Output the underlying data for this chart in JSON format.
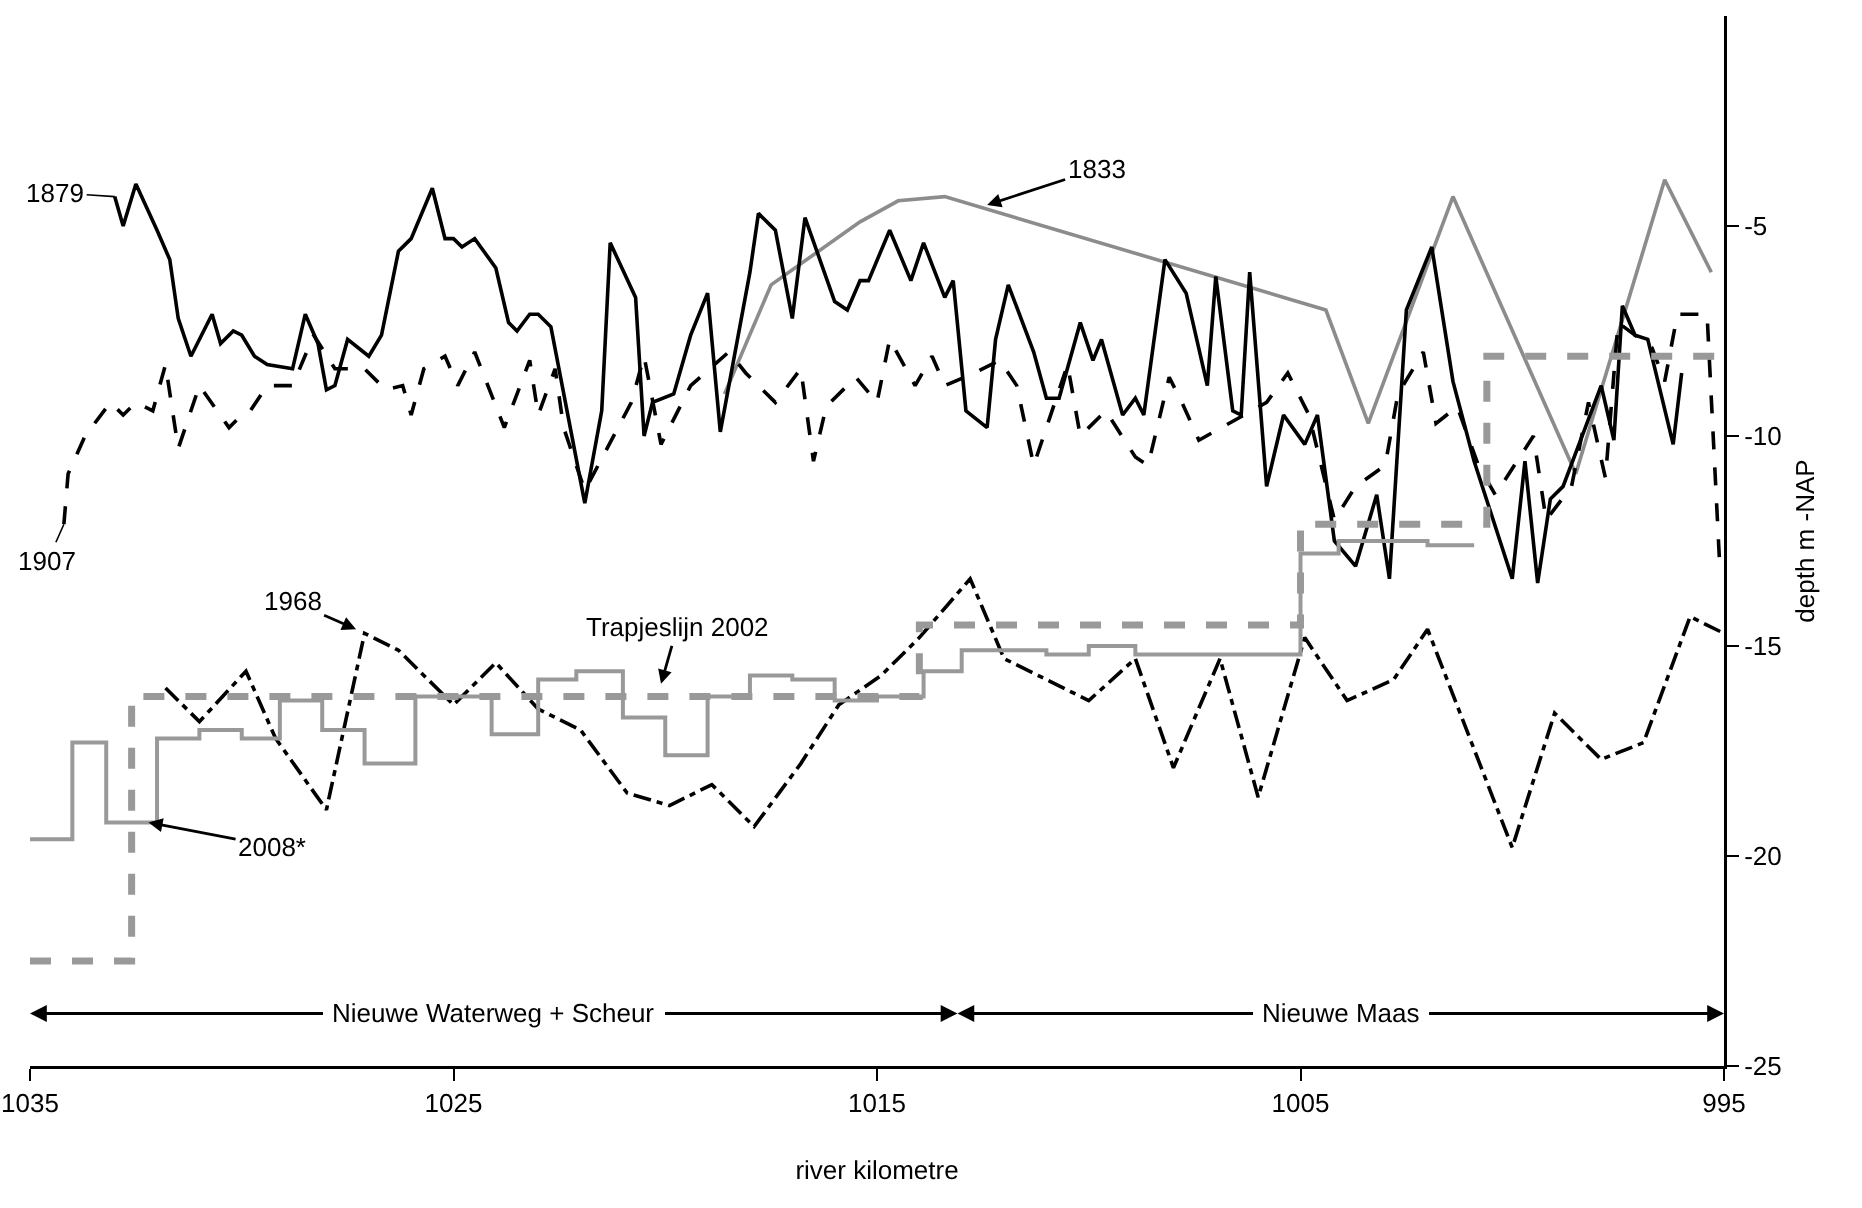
{
  "chart_data": {
    "type": "line",
    "xlabel": "river kilometre",
    "ylabel": "depth m -NAP",
    "xlim": [
      1035,
      995
    ],
    "xticks": [
      1035,
      1025,
      1015,
      1005,
      995
    ],
    "ylim": [
      -25,
      0
    ],
    "yticks": [
      -5,
      -10,
      -15,
      -20,
      -25
    ],
    "grid": false,
    "series": [
      {
        "color": "#8c8c8c",
        "line_style": "solid",
        "x": [
          1018.6,
          1017.5,
          1015.4,
          1014.5,
          1013.4,
          1004.4,
          1003.4,
          1001.4,
          998.5,
          996.4,
          995.3
        ],
        "values": [
          -9.0,
          -6.4,
          -4.9,
          -4.4,
          -4.3,
          -7.0,
          -9.7,
          -4.3,
          -10.9,
          -3.9,
          -6.1
        ]
      },
      {
        "color": "#000000",
        "line_style": "solid",
        "x": [
          1033.0,
          1032.8,
          1032.5,
          1032.0,
          1031.7,
          1031.5,
          1031.2,
          1030.7,
          1030.5,
          1030.2,
          1030.0,
          1029.7,
          1029.4,
          1028.8,
          1028.5,
          1028.2,
          1028.0,
          1027.8,
          1027.5,
          1027.0,
          1026.7,
          1026.3,
          1026.0,
          1025.5,
          1025.2,
          1025.0,
          1024.8,
          1024.5,
          1024.0,
          1023.7,
          1023.5,
          1023.2,
          1023.0,
          1022.7,
          1021.9,
          1021.5,
          1021.3,
          1020.7,
          1020.5,
          1020.3,
          1019.8,
          1019.4,
          1019.0,
          1018.7,
          1018.0,
          1017.8,
          1017.4,
          1017.0,
          1016.7,
          1016.0,
          1015.7,
          1015.4,
          1015.2,
          1014.7,
          1014.2,
          1013.9,
          1013.4,
          1013.2,
          1012.9,
          1012.4,
          1012.2,
          1011.9,
          1011.3,
          1011.0,
          1010.7,
          1010.2,
          1009.9,
          1009.7,
          1009.2,
          1008.9,
          1008.7,
          1008.2,
          1007.7,
          1007.2,
          1007.0,
          1006.6,
          1006.4,
          1006.2,
          1005.8,
          1005.4,
          1004.9,
          1004.6,
          1004.2,
          1003.7,
          1003.2,
          1002.9,
          1002.5,
          1001.9,
          1001.4,
          1000.9,
          1000.0,
          999.7,
          999.4,
          999.1,
          998.8,
          997.9,
          997.6,
          997.4,
          997.1,
          996.8,
          996.2,
          996.0
        ],
        "values": [
          -4.3,
          -5.0,
          -4.0,
          -5.1,
          -5.8,
          -7.2,
          -8.1,
          -7.1,
          -7.8,
          -7.5,
          -7.6,
          -8.1,
          -8.3,
          -8.4,
          -7.1,
          -7.8,
          -8.9,
          -8.8,
          -7.7,
          -8.1,
          -7.6,
          -5.6,
          -5.3,
          -4.1,
          -5.3,
          -5.3,
          -5.5,
          -5.3,
          -6.0,
          -7.3,
          -7.5,
          -7.1,
          -7.1,
          -7.4,
          -11.6,
          -9.4,
          -5.4,
          -6.7,
          -10.0,
          -9.2,
          -9.0,
          -7.6,
          -6.6,
          -9.9,
          -6.1,
          -4.7,
          -5.1,
          -7.2,
          -4.8,
          -6.8,
          -7.0,
          -6.3,
          -6.3,
          -5.1,
          -6.3,
          -5.4,
          -6.7,
          -6.3,
          -9.4,
          -9.8,
          -7.7,
          -6.4,
          -8.0,
          -9.1,
          -9.1,
          -7.3,
          -8.2,
          -7.7,
          -9.5,
          -9.1,
          -9.5,
          -5.8,
          -6.6,
          -8.8,
          -6.2,
          -9.4,
          -9.5,
          -6.1,
          -11.2,
          -9.5,
          -10.2,
          -9.5,
          -12.5,
          -13.1,
          -11.4,
          -13.4,
          -7.0,
          -5.5,
          -8.7,
          -10.6,
          -13.4,
          -10.6,
          -13.5,
          -11.5,
          -11.2,
          -8.8,
          -10.1,
          -6.9,
          -7.6,
          -7.7,
          -10.2,
          -8.5
        ]
      },
      {
        "color": "#000000",
        "line_style": "dashed",
        "x": [
          1034.2,
          1034.1,
          1033.7,
          1033.1,
          1032.8,
          1032.5,
          1032.1,
          1031.8,
          1031.5,
          1031.0,
          1030.3,
          1030.0,
          1029.8,
          1029.4,
          1028.8,
          1028.3,
          1027.8,
          1027.1,
          1026.6,
          1026.2,
          1026.0,
          1025.7,
          1025.2,
          1024.9,
          1024.5,
          1023.8,
          1023.2,
          1023.0,
          1022.6,
          1022.4,
          1021.9,
          1020.8,
          1020.5,
          1020.1,
          1019.4,
          1018.5,
          1018.1,
          1017.4,
          1016.8,
          1016.5,
          1016.2,
          1015.5,
          1015.0,
          1014.7,
          1014.1,
          1013.7,
          1013.4,
          1012.7,
          1012.1,
          1011.7,
          1011.3,
          1010.5,
          1010.2,
          1009.6,
          1008.9,
          1008.6,
          1008.1,
          1007.8,
          1007.4,
          1005.8,
          1005.3,
          1004.8,
          1004.2,
          1003.7,
          1003.0,
          1002.7,
          1002.1,
          1001.8,
          1001.3,
          1000.8,
          1000.4,
          999.5,
          999.2,
          998.6,
          998.2,
          997.8,
          997.5,
          996.7,
          996.4,
          996.1,
          995.4,
          995.1
        ],
        "values": [
          -12.1,
          -10.9,
          -10.0,
          -9.2,
          -9.5,
          -9.2,
          -9.4,
          -8.3,
          -10.3,
          -8.8,
          -9.8,
          -9.5,
          -9.4,
          -8.8,
          -8.8,
          -7.6,
          -8.4,
          -8.4,
          -8.9,
          -8.8,
          -9.5,
          -8.4,
          -8.1,
          -8.8,
          -8.0,
          -9.8,
          -8.2,
          -9.5,
          -8.4,
          -9.8,
          -11.3,
          -9.2,
          -8.1,
          -10.2,
          -8.8,
          -8.0,
          -8.5,
          -9.2,
          -8.4,
          -10.6,
          -9.3,
          -8.6,
          -9.2,
          -7.7,
          -8.8,
          -8.1,
          -8.8,
          -8.5,
          -8.2,
          -8.8,
          -10.7,
          -8.3,
          -10.0,
          -9.4,
          -10.5,
          -10.7,
          -8.6,
          -9.2,
          -10.1,
          -9.2,
          -8.5,
          -9.5,
          -12.0,
          -11.2,
          -10.7,
          -9.0,
          -8.0,
          -9.7,
          -9.3,
          -10.7,
          -11.4,
          -10.0,
          -12.0,
          -11.2,
          -9.2,
          -11.0,
          -7.3,
          -7.9,
          -8.7,
          -7.1,
          -7.1,
          -13.1
        ]
      },
      {
        "color": "#000000",
        "line_style": "dashdot",
        "x": [
          1031.8,
          1031.0,
          1029.9,
          1029.2,
          1028.0,
          1027.1,
          1026.3,
          1025.0,
          1024.0,
          1023.0,
          1022.0,
          1020.9,
          1019.9,
          1018.9,
          1017.9,
          1016.8,
          1015.9,
          1014.9,
          1014.0,
          1012.8,
          1012.0,
          1010.0,
          1008.9,
          1008.0,
          1006.9,
          1006.0,
          1004.9,
          1003.9,
          1002.8,
          1002.0,
          1000.0,
          999.0,
          997.9,
          996.9,
          995.8,
          995.0
        ],
        "values": [
          -16.0,
          -16.8,
          -15.6,
          -17.2,
          -18.9,
          -14.7,
          -15.1,
          -16.4,
          -15.4,
          -16.5,
          -17.0,
          -18.5,
          -18.8,
          -18.3,
          -19.3,
          -17.8,
          -16.4,
          -15.7,
          -14.8,
          -13.4,
          -15.3,
          -16.3,
          -15.3,
          -17.9,
          -15.3,
          -18.6,
          -14.8,
          -16.3,
          -15.8,
          -14.6,
          -19.8,
          -16.6,
          -17.7,
          -17.3,
          -14.3,
          -14.7
        ]
      },
      {
        "type": "step",
        "color": "#999999",
        "line_style": "dashed",
        "x": [
          1035,
          1032.6,
          1014.0,
          1005.0,
          1000.6,
          995.0
        ],
        "values": [
          -22.5,
          -16.2,
          -14.5,
          -12.1,
          -8.1,
          -8.1
        ]
      },
      {
        "type": "step",
        "color": "#999999",
        "line_style": "solid",
        "x": [
          1035,
          1034.0,
          1033.2,
          1032.0,
          1031.0,
          1030.0,
          1029.1,
          1028.1,
          1027.1,
          1025.9,
          1024.1,
          1023.0,
          1022.1,
          1021.0,
          1020.0,
          1019.0,
          1018.0,
          1017.0,
          1016.0,
          1015.0,
          1013.9,
          1013.0,
          1011.0,
          1010.0,
          1008.9,
          1005.0,
          1004.1,
          1002.0,
          1000.9
        ],
        "values": [
          -19.6,
          -17.3,
          -19.2,
          -17.2,
          -17.0,
          -17.2,
          -16.3,
          -17.0,
          -17.8,
          -16.2,
          -17.1,
          -15.8,
          -15.6,
          -16.7,
          -17.6,
          -16.2,
          -15.7,
          -15.8,
          -16.3,
          -16.2,
          -15.6,
          -15.1,
          -15.2,
          -15.0,
          -15.2,
          -12.8,
          -12.5,
          -12.6,
          -12.6
        ]
      }
    ],
    "annotations": [
      {
        "text": "1833",
        "x": 1012.4,
        "y": -4.5
      },
      {
        "text": "1879",
        "x": 1033.0,
        "y": -4.3
      },
      {
        "text": "1907",
        "x": 1034.2,
        "y": -12.1
      },
      {
        "text": "1968",
        "x": 1027.3,
        "y": -14.6
      },
      {
        "text": "Trapjeslijn 2002",
        "x": 1020.1,
        "y": -15.9
      },
      {
        "text": "2008*",
        "x": 1032.2,
        "y": -19.2
      },
      "Nieuwe Waterweg + Scheur",
      "Nieuwe Maas"
    ]
  }
}
